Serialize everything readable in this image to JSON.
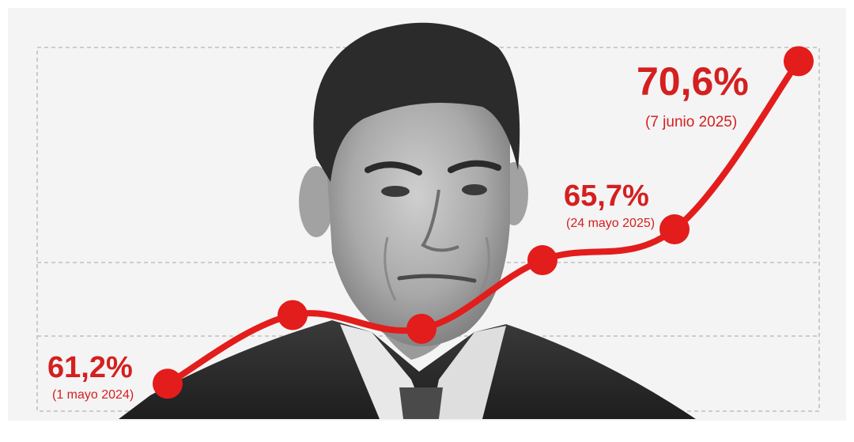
{
  "chart_data": {
    "type": "line",
    "title": "",
    "xlabel": "",
    "ylabel": "",
    "grid": true,
    "line_color": "#e31c1c",
    "label_color": "#d42020",
    "x": [
      "1 mayo 2024",
      "",
      "",
      "",
      "24 mayo 2025",
      "7 junio 2025"
    ],
    "series": [
      {
        "name": "",
        "values": [
          61.2,
          63.2,
          62.8,
          64.8,
          65.7,
          70.6
        ]
      }
    ],
    "ylim": [
      60.4,
      71.0
    ],
    "annotations": [
      {
        "point": 0,
        "value_text": "61,2%",
        "date_text": "(1 mayo 2024)"
      },
      {
        "point": 4,
        "value_text": "65,7%",
        "date_text": "(24 mayo 2025)"
      },
      {
        "point": 5,
        "value_text": "70,6%",
        "date_text": "(7 junio 2025)"
      }
    ]
  }
}
